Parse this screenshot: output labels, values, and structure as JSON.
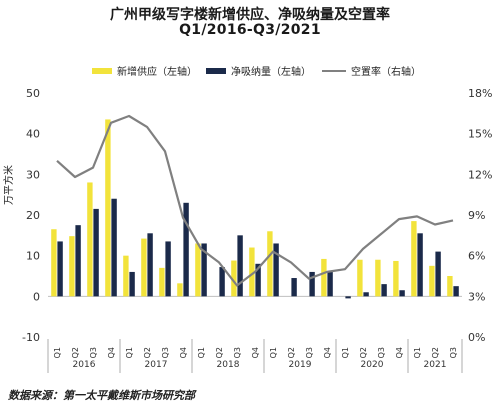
{
  "chart_data": {
    "type": "bar",
    "title": "广州甲级写字楼新增供应、净吸纳量及空置率",
    "subtitle": "Q1/2016-Q3/2021",
    "ylabel": "万平方米",
    "ylim": [
      -10,
      50
    ],
    "y2lim": [
      0,
      18
    ],
    "yticks": [
      "-10",
      "0",
      "10",
      "20",
      "30",
      "40",
      "50"
    ],
    "y2ticks": [
      "0%",
      "3%",
      "6%",
      "9%",
      "12%",
      "15%",
      "18%"
    ],
    "categories": [
      "Q1",
      "Q2",
      "Q3",
      "Q4",
      "Q1",
      "Q2",
      "Q3",
      "Q4",
      "Q1",
      "Q2",
      "Q3",
      "Q4",
      "Q1",
      "Q2",
      "Q3",
      "Q4",
      "Q1",
      "Q2",
      "Q3",
      "Q4",
      "Q1",
      "Q2",
      "Q3"
    ],
    "years": [
      {
        "label": "2016",
        "span": 4
      },
      {
        "label": "2017",
        "span": 4
      },
      {
        "label": "2018",
        "span": 4
      },
      {
        "label": "2019",
        "span": 4
      },
      {
        "label": "2020",
        "span": 4
      },
      {
        "label": "2021",
        "span": 3
      }
    ],
    "series": [
      {
        "name": "新增供应（左轴）",
        "type": "bar",
        "axis": "left",
        "color": "#f2e33b",
        "values": [
          16.5,
          14.8,
          28,
          43.5,
          10,
          14.2,
          7,
          3.2,
          13,
          0,
          8.8,
          12,
          16,
          0,
          0,
          9.2,
          0,
          9,
          9,
          8.7,
          18.5,
          7.5,
          5
        ]
      },
      {
        "name": "净吸纳量（左轴）",
        "type": "bar",
        "axis": "left",
        "color": "#1b2a4a",
        "values": [
          13.5,
          17.5,
          21.5,
          24,
          6,
          15.5,
          13.5,
          23,
          13,
          7.2,
          15,
          8,
          13,
          4.5,
          6,
          6,
          -0.5,
          1,
          3,
          1.5,
          15.5,
          11,
          2.5
        ]
      },
      {
        "name": "空置率（右轴）",
        "type": "line",
        "axis": "right",
        "color": "#808080",
        "values": [
          13.0,
          11.8,
          12.5,
          15.8,
          16.3,
          15.5,
          13.7,
          8.8,
          6.5,
          5.5,
          3.8,
          4.8,
          6.3,
          5.5,
          4.3,
          4.8,
          5.0,
          6.5,
          7.6,
          8.7,
          8.9,
          8.3,
          8.6
        ]
      }
    ],
    "grid": false,
    "legend_position": "top"
  },
  "source_note": "数据来源：第一太平戴维斯市场研究部"
}
